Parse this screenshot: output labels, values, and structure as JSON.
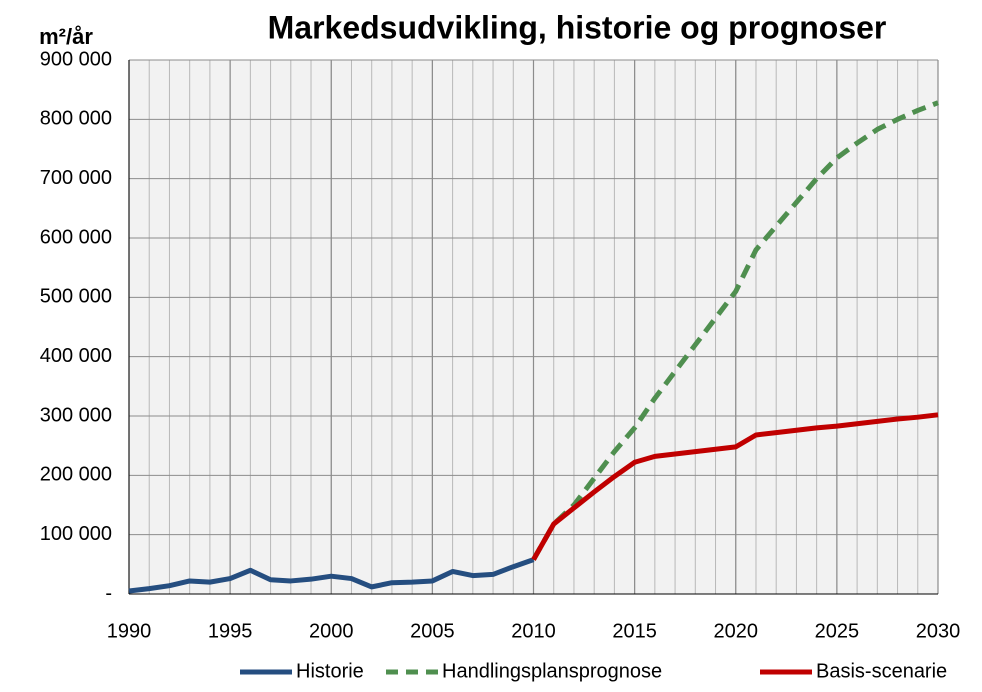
{
  "chart_data": {
    "type": "line",
    "title": "Markedsudvikling, historie og prognoser",
    "ylabel": "m²/år",
    "xlim": [
      1990,
      2030
    ],
    "xticks": [
      1990,
      1995,
      2000,
      2005,
      2010,
      2015,
      2020,
      2025,
      2030
    ],
    "ylim": [
      0,
      900000
    ],
    "yticks": [
      {
        "value": 0,
        "label": "-"
      },
      {
        "value": 100000,
        "label": "100 000"
      },
      {
        "value": 200000,
        "label": "200 000"
      },
      {
        "value": 300000,
        "label": "300 000"
      },
      {
        "value": 400000,
        "label": "400 000"
      },
      {
        "value": 500000,
        "label": "500 000"
      },
      {
        "value": 600000,
        "label": "600 000"
      },
      {
        "value": 700000,
        "label": "700 000"
      },
      {
        "value": 800000,
        "label": "800 000"
      },
      {
        "value": 900000,
        "label": "900 000"
      }
    ],
    "grid": true,
    "legend": "bottom",
    "series": [
      {
        "name": "Historie",
        "color": "#254e80",
        "dashed": false,
        "x": [
          1990,
          1991,
          1992,
          1993,
          1994,
          1995,
          1996,
          1997,
          1998,
          1999,
          2000,
          2001,
          2002,
          2003,
          2004,
          2005,
          2006,
          2007,
          2008,
          2009,
          2010
        ],
        "values": [
          5000,
          9000,
          14000,
          22000,
          20000,
          26000,
          40000,
          24000,
          22000,
          25000,
          30000,
          26000,
          12000,
          19000,
          20000,
          22000,
          38000,
          31000,
          33000,
          46000,
          58000
        ]
      },
      {
        "name": "Handlingsplansprognose",
        "color": "#4f8f4f",
        "dashed": true,
        "x": [
          2010,
          2011,
          2012,
          2013,
          2014,
          2015,
          2016,
          2017,
          2018,
          2019,
          2020,
          2021,
          2022,
          2023,
          2024,
          2025,
          2026,
          2027,
          2028,
          2029,
          2030
        ],
        "values": [
          58000,
          118000,
          150000,
          195000,
          240000,
          280000,
          330000,
          375000,
          420000,
          465000,
          510000,
          580000,
          620000,
          660000,
          700000,
          735000,
          760000,
          783000,
          800000,
          815000,
          828000
        ]
      },
      {
        "name": "Basis-scenarie",
        "color": "#c00000",
        "dashed": false,
        "x": [
          2010,
          2011,
          2012,
          2013,
          2014,
          2015,
          2016,
          2017,
          2018,
          2019,
          2020,
          2021,
          2022,
          2023,
          2024,
          2025,
          2026,
          2027,
          2028,
          2029,
          2030
        ],
        "values": [
          58000,
          118000,
          145000,
          172000,
          198000,
          222000,
          232000,
          236000,
          240000,
          244000,
          248000,
          268000,
          272000,
          276000,
          280000,
          283000,
          287000,
          291000,
          295000,
          298000,
          302000
        ]
      }
    ]
  }
}
